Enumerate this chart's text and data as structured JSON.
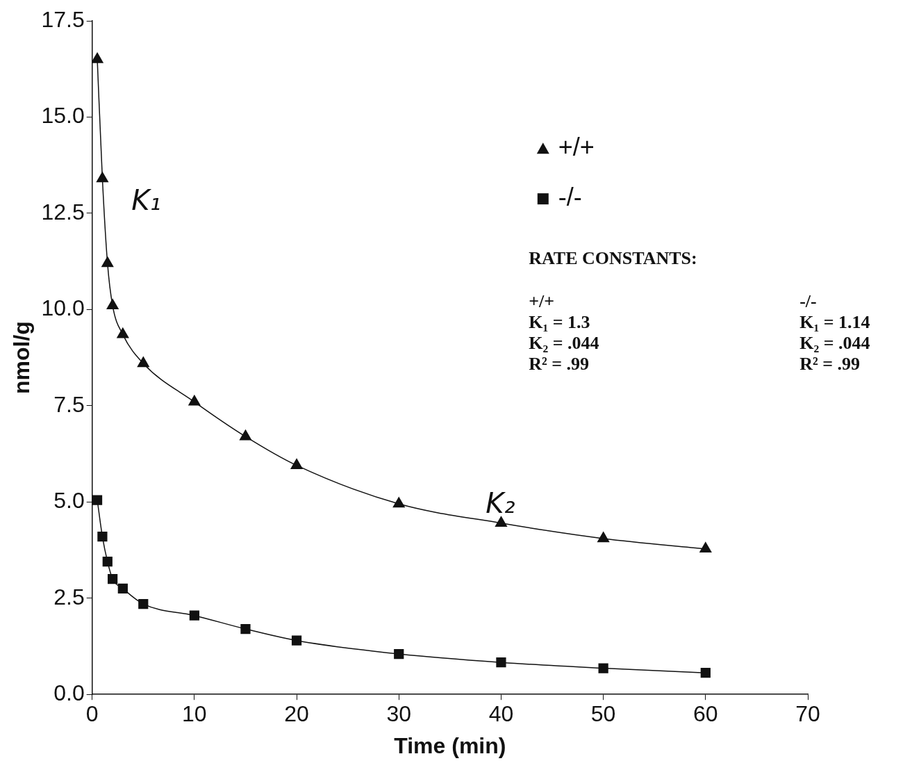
{
  "chart_data": {
    "type": "line",
    "xlabel": "Time (min)",
    "ylabel": "nmol/g",
    "x": [
      0.5,
      1,
      1.5,
      2,
      3,
      5,
      10,
      15,
      20,
      30,
      40,
      50,
      60
    ],
    "series": [
      {
        "name": "+/+",
        "color": "#111111",
        "marker": "triangle",
        "values": [
          16.5,
          13.4,
          11.2,
          10.1,
          9.35,
          8.6,
          7.6,
          6.7,
          5.95,
          4.95,
          4.45,
          4.05,
          3.78
        ]
      },
      {
        "name": "-/-",
        "color": "#111111",
        "marker": "square",
        "values": [
          5.05,
          4.1,
          3.45,
          3.0,
          2.75,
          2.35,
          2.05,
          1.7,
          1.4,
          1.05,
          0.83,
          0.68,
          0.56
        ]
      }
    ],
    "xlim": [
      0,
      70
    ],
    "xticks": [
      0,
      10,
      20,
      30,
      40,
      50,
      60,
      70
    ],
    "ylim": [
      0,
      17.5
    ],
    "yticks": [
      {
        "value": 0,
        "label": "0.0"
      },
      {
        "value": 2.5,
        "label": "2.5"
      },
      {
        "value": 5,
        "label": "5.0"
      },
      {
        "value": 7.5,
        "label": "7.5"
      },
      {
        "value": 10,
        "label": "10.0"
      },
      {
        "value": 12.5,
        "label": "12.5"
      },
      {
        "value": 15,
        "label": "15.0"
      },
      {
        "value": 17.5,
        "label": "17.5"
      }
    ],
    "grid": false,
    "legend": "top right",
    "annotations": [
      "K₁",
      "K₂",
      "RATE CONSTANTS:",
      "+/+",
      "K₁ = 1.3",
      "K₂ = .044",
      "R² = .99",
      "-/-",
      "K₁ = 1.14",
      "K₂ = .044",
      "R² = .99"
    ]
  }
}
